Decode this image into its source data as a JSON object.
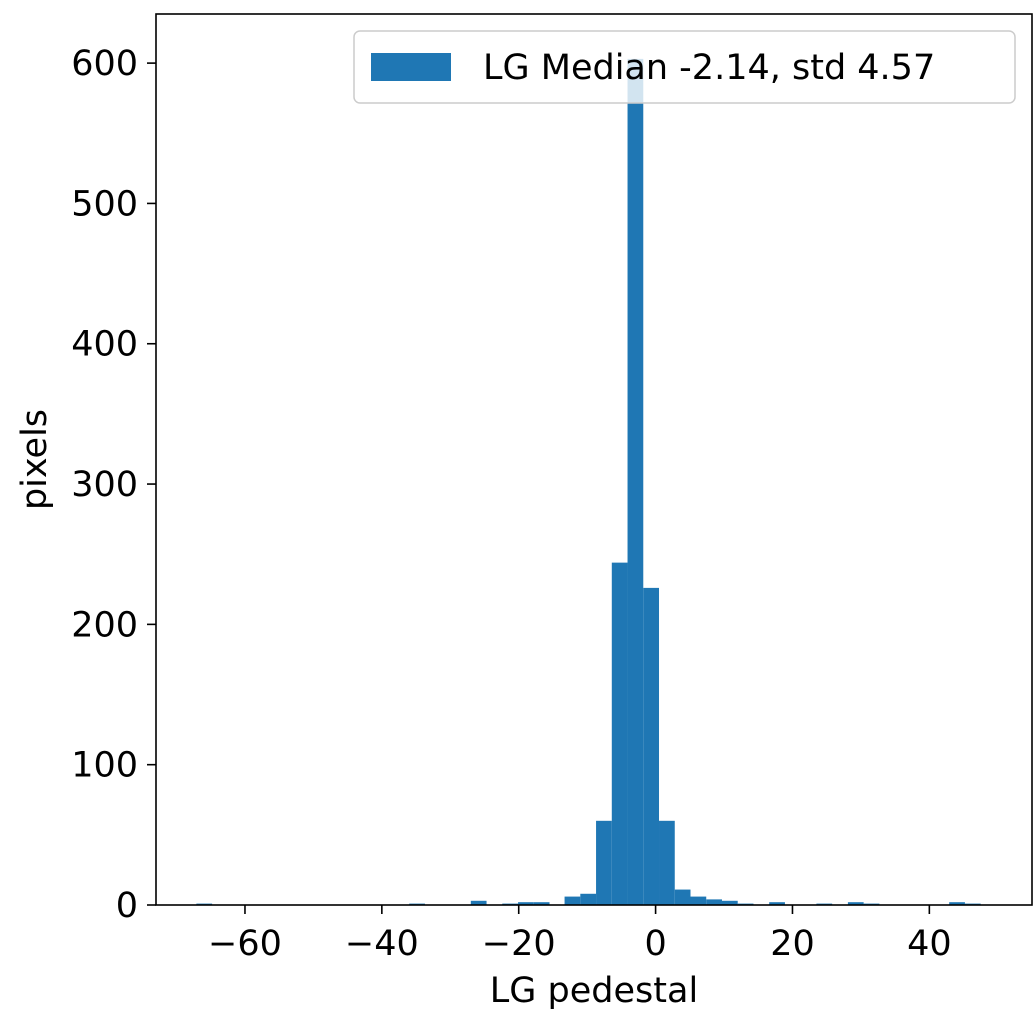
{
  "chart_data": {
    "type": "bar",
    "title": "",
    "xlabel": "LG pedestal",
    "ylabel": "pixels",
    "xlim": [
      -73,
      55
    ],
    "ylim": [
      0,
      635
    ],
    "xticks": [
      -60,
      -40,
      -20,
      0,
      20,
      40
    ],
    "xtick_labels": [
      "−60",
      "−40",
      "−20",
      "0",
      "20",
      "40"
    ],
    "yticks": [
      0,
      100,
      200,
      300,
      400,
      500,
      600
    ],
    "ytick_labels": [
      "0",
      "100",
      "200",
      "300",
      "400",
      "500",
      "600"
    ],
    "grid": false,
    "legend_position": "top-right",
    "series": [
      {
        "name": "LG Median -2.14, std 4.57",
        "color": "#1f77b4",
        "bin_width": 2.3,
        "bins": [
          {
            "x0": -67.1,
            "count": 1
          },
          {
            "x0": -36.0,
            "count": 1
          },
          {
            "x0": -27.0,
            "count": 3
          },
          {
            "x0": -22.4,
            "count": 1
          },
          {
            "x0": -20.1,
            "count": 2
          },
          {
            "x0": -17.8,
            "count": 2
          },
          {
            "x0": -13.3,
            "count": 6
          },
          {
            "x0": -11.0,
            "count": 8
          },
          {
            "x0": -8.7,
            "count": 60
          },
          {
            "x0": -6.4,
            "count": 244
          },
          {
            "x0": -4.1,
            "count": 603
          },
          {
            "x0": -1.8,
            "count": 226
          },
          {
            "x0": 0.5,
            "count": 60
          },
          {
            "x0": 2.8,
            "count": 11
          },
          {
            "x0": 5.1,
            "count": 6
          },
          {
            "x0": 7.4,
            "count": 4
          },
          {
            "x0": 9.7,
            "count": 3
          },
          {
            "x0": 12.0,
            "count": 1
          },
          {
            "x0": 16.6,
            "count": 2
          },
          {
            "x0": 23.5,
            "count": 1
          },
          {
            "x0": 28.1,
            "count": 2
          },
          {
            "x0": 30.4,
            "count": 1
          },
          {
            "x0": 42.9,
            "count": 2
          },
          {
            "x0": 45.2,
            "count": 1
          }
        ]
      }
    ]
  }
}
